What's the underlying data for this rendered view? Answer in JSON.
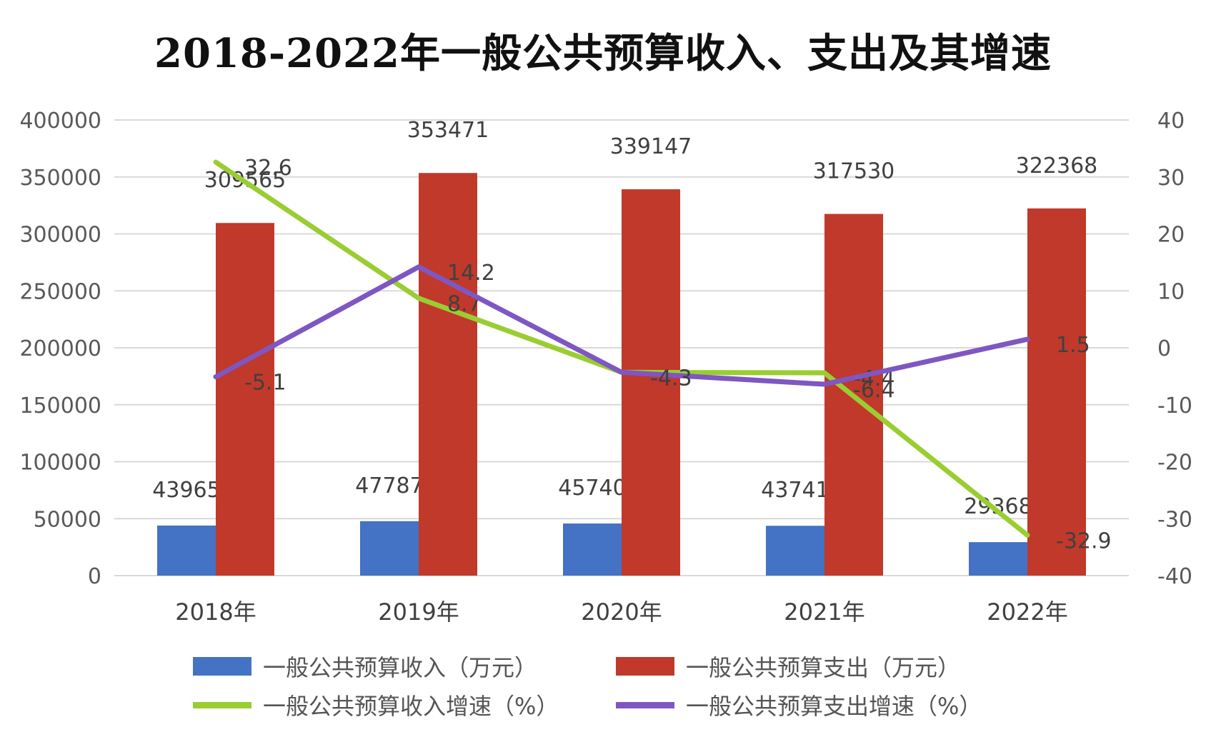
{
  "chart_data": {
    "type": "bar+line",
    "title": "2018-2022年一般公共预算收入、支出及其增速",
    "categories": [
      "2018年",
      "2019年",
      "2020年",
      "2021年",
      "2022年"
    ],
    "y_left": {
      "range": [
        0,
        400000
      ],
      "ticks": [
        "400000",
        "350000",
        "300000",
        "250000",
        "200000",
        "150000",
        "100000",
        "50000",
        "0"
      ]
    },
    "y_right": {
      "range": [
        -40,
        40
      ],
      "ticks": [
        "40",
        "30",
        "20",
        "10",
        "0",
        "-10",
        "-20",
        "-30",
        "-40"
      ]
    },
    "grid": true,
    "legend_position": "bottom",
    "series": [
      {
        "name": "一般公共预算收入（万元）",
        "kind": "bar",
        "axis": "left",
        "color": "#4472C4",
        "values": [
          43965,
          47787,
          45740,
          43741,
          29368
        ],
        "labels": [
          "43965",
          "47787",
          "45740",
          "43741",
          "29368"
        ]
      },
      {
        "name": "一般公共预算支出（万元）",
        "kind": "bar",
        "axis": "left",
        "color": "#C0392B",
        "values": [
          309565,
          353471,
          339147,
          317530,
          322368
        ],
        "labels": [
          "309565",
          "353471",
          "339147",
          "317530",
          "322368"
        ]
      },
      {
        "name": "一般公共预算收入增速（%）",
        "kind": "line",
        "axis": "right",
        "color": "#9ACD32",
        "values": [
          32.6,
          8.7,
          -4.3,
          -4.4,
          -32.9
        ],
        "labels": [
          "32.6",
          "8.7",
          "-4.3",
          "-4.4",
          "-32.9"
        ]
      },
      {
        "name": "一般公共预算支出增速（%）",
        "kind": "line",
        "axis": "right",
        "color": "#7E57C2",
        "values": [
          -5.1,
          14.2,
          -4.3,
          -6.4,
          1.5
        ],
        "labels": [
          "-5.1",
          "14.2",
          "-4.3",
          "-6.4",
          "1.5"
        ]
      }
    ]
  }
}
